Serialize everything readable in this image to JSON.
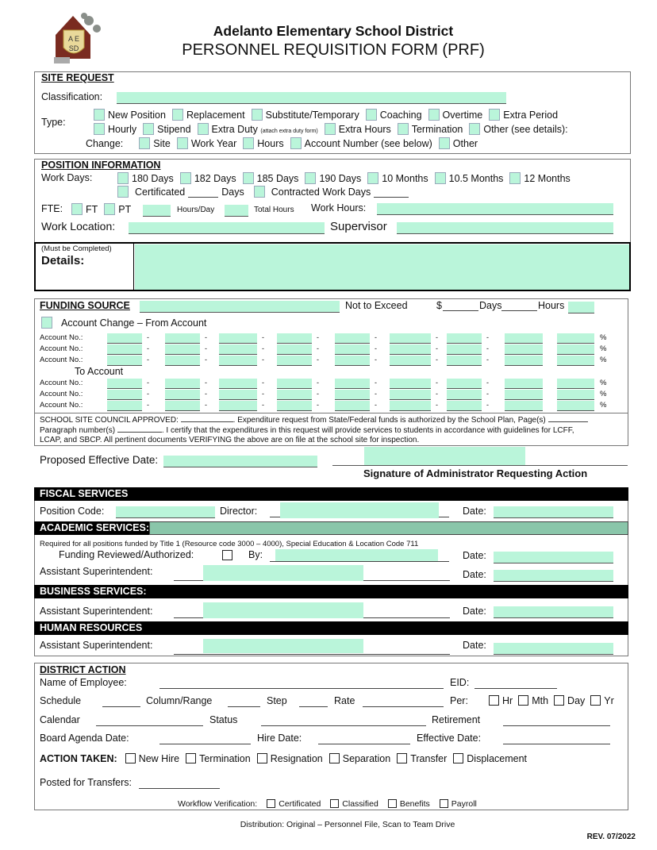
{
  "header": {
    "district": "Adelanto Elementary School District",
    "form_title": "PERSONNEL REQUISITION FORM (PRF)",
    "logo_text": "AESD"
  },
  "site_request": {
    "heading": "SITE REQUEST",
    "classification_label": "Classification:",
    "type_label": "Type:",
    "type_row1": [
      "New Position",
      "Replacement",
      "Substitute/Temporary",
      "Coaching",
      "Overtime",
      "Extra Period"
    ],
    "type_row2": [
      "Hourly",
      "Stipend",
      "Extra Duty",
      "Extra Hours",
      "Termination",
      "Other (see details):"
    ],
    "extra_duty_note": "(attach extra duty form)",
    "change_label": "Change:",
    "change_options": [
      "Site",
      "Work Year",
      "Hours",
      "Account Number (see below)",
      "Other"
    ]
  },
  "position": {
    "heading": "POSITION INFORMATION",
    "work_days_label": "Work Days:",
    "work_days": [
      "180 Days",
      "182 Days",
      "185 Days",
      "190 Days",
      "10 Months",
      "10.5 Months",
      "12 Months"
    ],
    "certificated": "Certificated",
    "days": "Days",
    "contracted": "Contracted Work Days",
    "fte_label": "FTE:",
    "ft": "FT",
    "pt": "PT",
    "hours_day": "Hours/Day",
    "total_hours": "Total Hours",
    "work_hours_label": "Work Hours:",
    "work_location_label": "Work Location:",
    "supervisor_label": "Supervisor",
    "must_complete": "(Must be Completed)",
    "details_label": "Details:"
  },
  "funding": {
    "heading": "FUNDING SOURCE",
    "not_to_exceed": "Not to Exceed",
    "dollar": "$",
    "days": "Days",
    "hours": "Hours",
    "account_change": "Account Change – From Account",
    "account_label": "Account No.:",
    "to_account": "To Account",
    "percent": "%",
    "dash": "-",
    "council_text1": "SCHOOL SITE COUNCIL APPROVED:",
    "council_text2": ". Expenditure request from State/Federal funds is authorized by the School Plan, Page(s)",
    "council_text3": "Paragraph number(s)",
    "council_text4": ". I certify that the expenditures in this request will provide services to students in accordance with guidelines for LCFF,",
    "council_text5": "LCAP, and SBCP. All pertinent documents VERIFYING the above are on file at the school site for inspection."
  },
  "proposed_date_label": "Proposed Effective Date:",
  "signature_label": "Signature of Administrator Requesting Action",
  "fiscal": {
    "heading": "FISCAL SERVICES",
    "position_code": "Position Code:",
    "director": "Director:",
    "date": "Date:"
  },
  "academic": {
    "heading": "ACADEMIC SERVICES:",
    "note": "Required for all positions funded by Title 1 (Resource code 3000 – 4000), Special Education & Location Code 711",
    "funding_reviewed": "Funding Reviewed/Authorized:",
    "by": "By:",
    "date": "Date:",
    "asst": "Assistant Superintendent:",
    "accent": "#8ac6aa"
  },
  "business": {
    "heading": "BUSINESS SERVICES:",
    "asst": "Assistant Superintendent:",
    "date": "Date:"
  },
  "hr": {
    "heading": "HUMAN RESOURCES",
    "asst": "Assistant Superintendent:",
    "date": "Date:"
  },
  "district_action": {
    "heading": "DISTRICT ACTION",
    "name": "Name of Employee:",
    "eid": "EID:",
    "schedule": "Schedule",
    "column": "Column/Range",
    "step": "Step",
    "rate": "Rate",
    "per": "Per:",
    "per_options": [
      "Hr",
      "Mth",
      "Day",
      "Yr"
    ],
    "calendar": "Calendar",
    "status": "Status",
    "retirement": "Retirement",
    "board_date": "Board Agenda Date:",
    "hire_date": "Hire Date:",
    "effective_date": "Effective Date:",
    "action_taken": "ACTION TAKEN:",
    "actions": [
      "New Hire",
      "Termination",
      "Resignation",
      "Separation",
      "Transfer",
      "Displacement"
    ],
    "posted": "Posted for Transfers:",
    "workflow": "Workflow Verification:",
    "workflow_options": [
      "Certificated",
      "Classified",
      "Benefits",
      "Payroll"
    ]
  },
  "footer": {
    "distribution": "Distribution: Original – Personnel File, Scan to Team Drive",
    "rev": "REV. 07/2022"
  },
  "colors": {
    "field_fill": "#baf5da",
    "bar": "#000000"
  }
}
